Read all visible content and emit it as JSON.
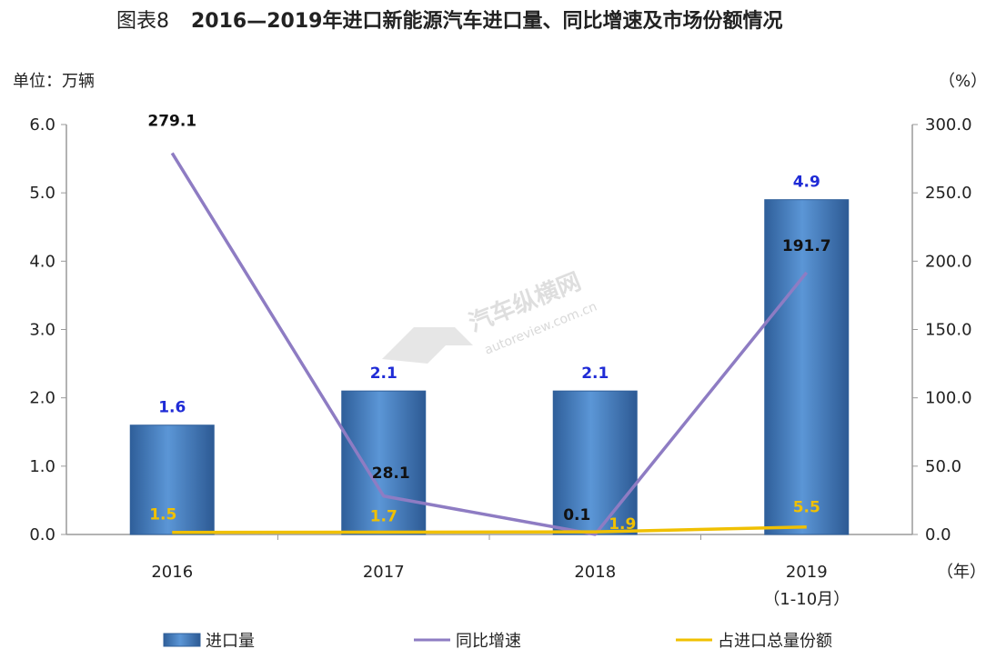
{
  "title": {
    "prefix": "图表8",
    "main": "2016—2019年进口新能源汽车进口量、同比增速及市场份额情况"
  },
  "units": {
    "left": "单位：万辆",
    "right": "（%）",
    "x": "（年）"
  },
  "watermark": {
    "text": "汽车纵横网",
    "sub": "autoreview.com.cn"
  },
  "colors": {
    "bar": "#4a86c8",
    "bar_dark": "#2f5f9a",
    "growth": "#8e7cc3",
    "share": "#f0c000",
    "axis": "#9a9a9a"
  },
  "chart_data": {
    "type": "bar",
    "categories": [
      "2016",
      "2017",
      "2018",
      "2019"
    ],
    "category_sublabels": [
      "",
      "",
      "",
      "（1-10月）"
    ],
    "ylim_left": [
      0,
      6.0
    ],
    "yticks_left": [
      "6.0",
      "5.0",
      "4.0",
      "3.0",
      "2.0",
      "1.0",
      "0.0"
    ],
    "ylim_right": [
      0,
      300.0
    ],
    "yticks_right": [
      "300.0",
      "250.0",
      "200.0",
      "150.0",
      "100.0",
      "50.0",
      "0.0"
    ],
    "series": [
      {
        "name": "进口量",
        "type": "bar",
        "axis": "left",
        "values": [
          1.6,
          2.1,
          2.1,
          4.9
        ],
        "labels": [
          "1.6",
          "2.1",
          "2.1",
          "4.9"
        ]
      },
      {
        "name": "同比增速",
        "type": "line",
        "axis": "right",
        "values": [
          279.1,
          28.1,
          0.1,
          191.7
        ],
        "labels": [
          "279.1",
          "28.1",
          "0.1",
          "191.7"
        ]
      },
      {
        "name": "占进口总量份额",
        "type": "line",
        "axis": "right",
        "values": [
          1.5,
          1.7,
          1.9,
          5.5
        ],
        "labels": [
          "1.5",
          "1.7",
          "1.9",
          "5.5"
        ]
      }
    ],
    "legend_position": "bottom"
  }
}
